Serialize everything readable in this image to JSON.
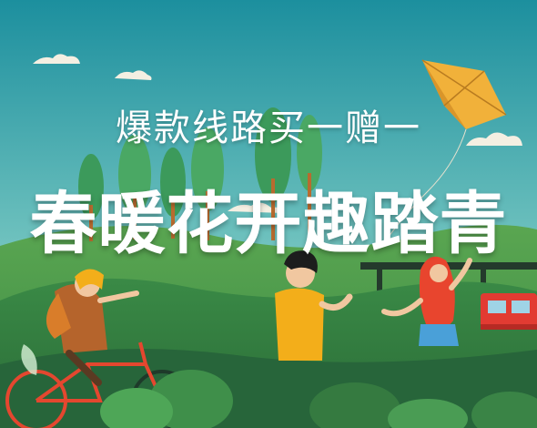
{
  "banner": {
    "subtitle": "爆款线路买一赠一",
    "title": "春暖花开趣踏青"
  },
  "colors": {
    "sky_top": "#1c8f9e",
    "sky_bottom": "#b8e2d4",
    "hill_dark": "#2f7a3c",
    "hill_mid": "#3f9a4a",
    "kite": "#f1b13a",
    "shirt_yellow": "#f3ae1a",
    "hair_red": "#e8452e",
    "bike_red": "#e4472f",
    "train_red": "#e23b32"
  },
  "icons": [
    "kite-icon",
    "bicycle-icon",
    "train-icon",
    "cloud-icon"
  ]
}
